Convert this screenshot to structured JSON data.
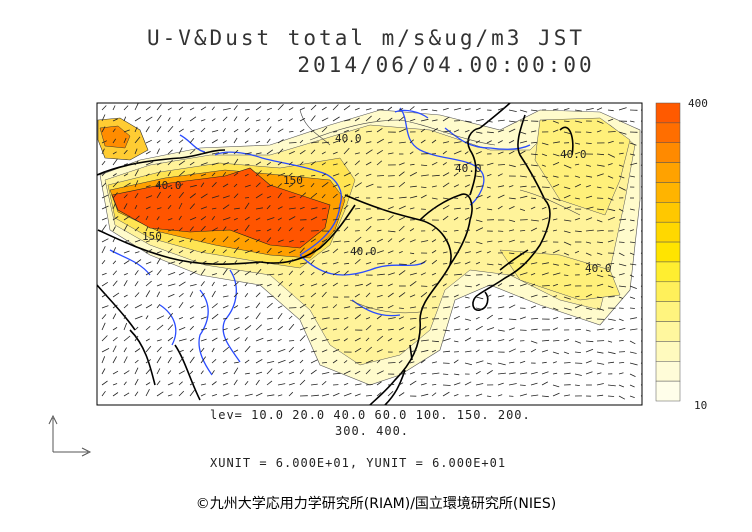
{
  "title_line1": "U-V&Dust total m/s&ug/m3 JST",
  "title_line2": "2014/06/04.00:00:00",
  "contour_labels": [
    "40.0",
    "40.0",
    "150",
    "150",
    "40.0",
    "40.0",
    "40.0",
    "40.0"
  ],
  "levels_line1": "lev= 10.0 20.0 40.0 60.0 100. 150. 200.",
  "levels_line2": "300. 400.",
  "units_line": "XUNIT = 6.000E+01, YUNIT = 6.000E+01",
  "colorbar": {
    "max_label": "400",
    "min_label": "10",
    "colors": [
      "#ff5a00",
      "#ff6e00",
      "#ff8a00",
      "#ffa200",
      "#ffb400",
      "#ffc800",
      "#ffd800",
      "#ffe400",
      "#ffee30",
      "#fff05a",
      "#fff47e",
      "#fff79e",
      "#fffabe",
      "#fffcd8",
      "#fffeea"
    ]
  },
  "credit": "©九州大学応用力学研究所(RIAM)/国立環境研究所(NIES)",
  "colors": {
    "dust_high": "#ff5500",
    "dust_mid": "#ffb800",
    "dust_low": "#fff59a",
    "rivers": "#2a4cff",
    "coast": "#000000"
  }
}
